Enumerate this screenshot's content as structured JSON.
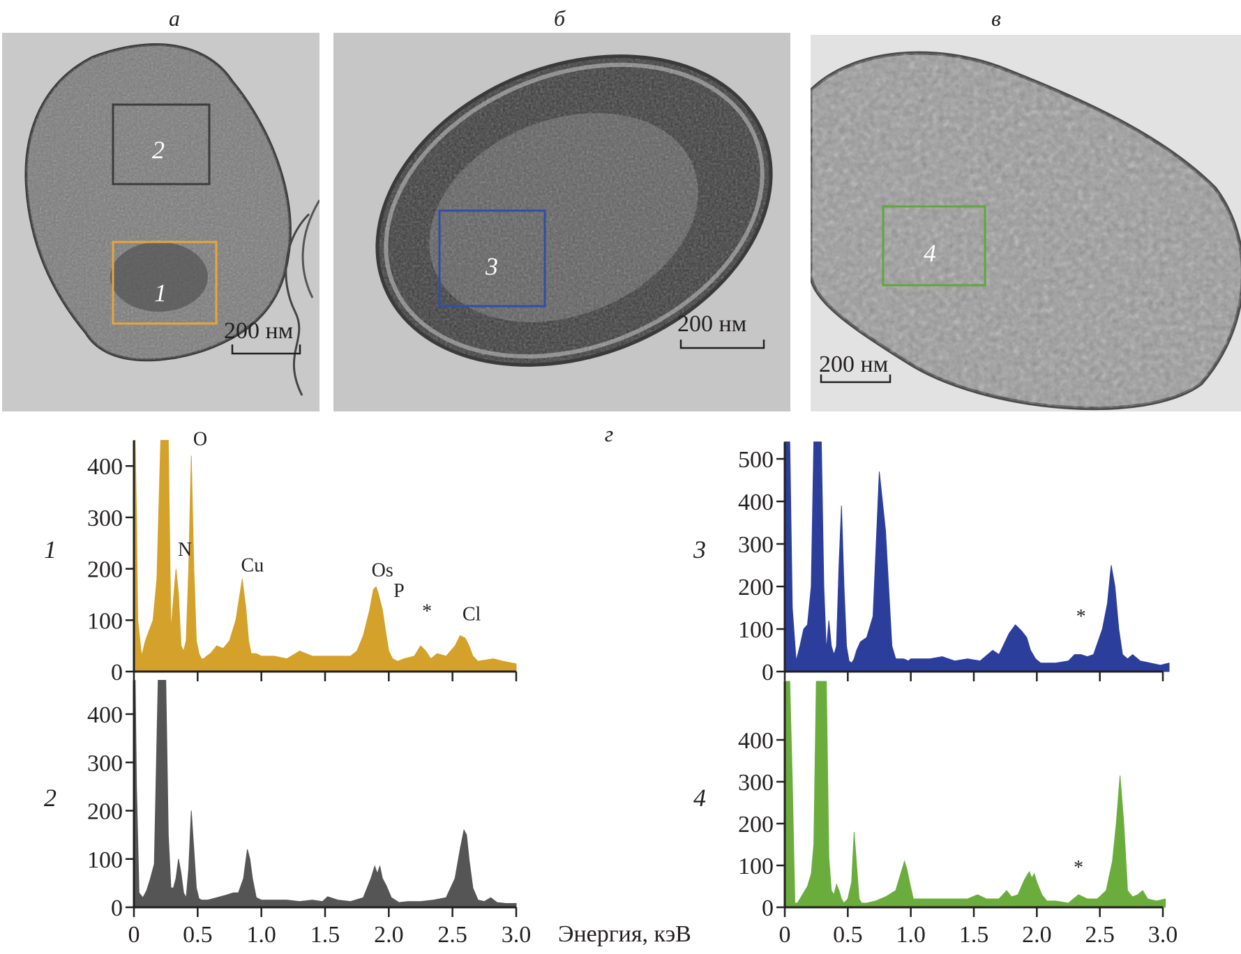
{
  "figure": {
    "panel_labels": {
      "a": "а",
      "b": "б",
      "c": "в",
      "d": "г"
    },
    "scale_bar_text": "200 нм",
    "photos": [
      {
        "id": "a",
        "rois": [
          {
            "num": "1",
            "color": "#e8a63a"
          },
          {
            "num": "2",
            "color": "#3c3c3c"
          }
        ]
      },
      {
        "id": "b",
        "rois": [
          {
            "num": "3",
            "color": "#2f4ea8"
          }
        ]
      },
      {
        "id": "c",
        "rois": [
          {
            "num": "4",
            "color": "#5ea83a"
          }
        ]
      }
    ]
  },
  "chart_data": [
    {
      "type": "area",
      "id": "spectrum-1",
      "label": "1",
      "color": "#d4a12a",
      "xlabel": "",
      "ylabel": "",
      "xlim": [
        0,
        3.0
      ],
      "ylim": [
        0,
        450
      ],
      "xticks": [
        0,
        0.5,
        1.0,
        1.5,
        2.0,
        2.5,
        3.0
      ],
      "xtick_labels": [],
      "yticks": [
        0,
        100,
        200,
        300,
        400
      ],
      "ytick_labels": [
        "0",
        "100",
        "200",
        "300",
        "400"
      ],
      "peak_labels": [
        {
          "text": "O",
          "x": 0.52,
          "y": 440
        },
        {
          "text": "N",
          "x": 0.4,
          "y": 225
        },
        {
          "text": "Cu",
          "x": 0.93,
          "y": 195
        },
        {
          "text": "Os",
          "x": 1.95,
          "y": 185
        },
        {
          "text": "P",
          "x": 2.08,
          "y": 145
        },
        {
          "text": "*",
          "x": 2.3,
          "y": 105
        },
        {
          "text": "Cl",
          "x": 2.65,
          "y": 100
        }
      ],
      "x": [
        0,
        0.01,
        0.02,
        0.03,
        0.06,
        0.09,
        0.12,
        0.15,
        0.18,
        0.21,
        0.23,
        0.25,
        0.27,
        0.29,
        0.31,
        0.33,
        0.35,
        0.37,
        0.39,
        0.41,
        0.43,
        0.45,
        0.47,
        0.49,
        0.51,
        0.53,
        0.55,
        0.57,
        0.6,
        0.65,
        0.7,
        0.75,
        0.8,
        0.85,
        0.88,
        0.9,
        0.92,
        0.94,
        0.96,
        1.0,
        1.1,
        1.2,
        1.3,
        1.4,
        1.5,
        1.6,
        1.7,
        1.75,
        1.8,
        1.85,
        1.88,
        1.9,
        1.92,
        1.95,
        1.98,
        2.0,
        2.03,
        2.07,
        2.12,
        2.2,
        2.25,
        2.29,
        2.33,
        2.38,
        2.45,
        2.52,
        2.56,
        2.6,
        2.63,
        2.66,
        2.7,
        2.75,
        2.82,
        2.9,
        3.0
      ],
      "y": [
        450,
        450,
        300,
        100,
        30,
        60,
        80,
        100,
        180,
        450,
        450,
        450,
        450,
        80,
        140,
        200,
        150,
        50,
        40,
        60,
        200,
        420,
        200,
        60,
        35,
        25,
        25,
        30,
        35,
        50,
        45,
        60,
        100,
        180,
        120,
        60,
        35,
        35,
        35,
        30,
        30,
        25,
        40,
        30,
        30,
        30,
        30,
        40,
        70,
        120,
        160,
        165,
        150,
        120,
        70,
        40,
        25,
        20,
        25,
        30,
        50,
        40,
        25,
        35,
        30,
        50,
        70,
        65,
        50,
        30,
        20,
        22,
        25,
        20,
        15
      ]
    },
    {
      "type": "area",
      "id": "spectrum-2",
      "label": "2",
      "color": "#555555",
      "xlabel": "Энергия, кэВ",
      "ylabel": "",
      "xlim": [
        0,
        3.0
      ],
      "ylim": [
        0,
        470
      ],
      "xticks": [
        0,
        0.5,
        1.0,
        1.5,
        2.0,
        2.5,
        3.0
      ],
      "xtick_labels": [
        "0",
        "0.5",
        "1.0",
        "1.5",
        "2.0",
        "2.5",
        "3.0"
      ],
      "yticks": [
        0,
        100,
        200,
        300,
        400
      ],
      "ytick_labels": [
        "0",
        "100",
        "200",
        "300",
        "400"
      ],
      "peak_labels": [],
      "x": [
        0,
        0.01,
        0.02,
        0.04,
        0.07,
        0.1,
        0.13,
        0.16,
        0.19,
        0.21,
        0.23,
        0.25,
        0.27,
        0.29,
        0.31,
        0.33,
        0.35,
        0.37,
        0.39,
        0.41,
        0.43,
        0.45,
        0.47,
        0.49,
        0.51,
        0.53,
        0.55,
        0.58,
        0.65,
        0.72,
        0.78,
        0.82,
        0.86,
        0.89,
        0.91,
        0.93,
        0.96,
        1.0,
        1.1,
        1.2,
        1.3,
        1.4,
        1.48,
        1.52,
        1.6,
        1.7,
        1.8,
        1.86,
        1.89,
        1.91,
        1.93,
        1.95,
        1.98,
        2.02,
        2.08,
        2.15,
        2.25,
        2.35,
        2.45,
        2.52,
        2.56,
        2.59,
        2.61,
        2.63,
        2.66,
        2.7,
        2.75,
        2.8,
        2.85,
        2.92,
        3.0
      ],
      "y": [
        470,
        470,
        250,
        30,
        20,
        35,
        60,
        90,
        470,
        470,
        470,
        470,
        150,
        40,
        40,
        60,
        100,
        70,
        30,
        20,
        80,
        200,
        120,
        40,
        18,
        15,
        15,
        15,
        20,
        25,
        30,
        30,
        60,
        120,
        100,
        60,
        20,
        15,
        15,
        15,
        12,
        15,
        12,
        22,
        15,
        12,
        20,
        60,
        85,
        70,
        85,
        60,
        45,
        20,
        10,
        12,
        12,
        15,
        20,
        60,
        120,
        160,
        150,
        100,
        40,
        15,
        12,
        20,
        10,
        8,
        8
      ]
    },
    {
      "type": "area",
      "id": "spectrum-3",
      "label": "3",
      "color": "#2c3e9c",
      "xlabel": "",
      "ylabel": "",
      "xlim": [
        0,
        3.0
      ],
      "ylim": [
        0,
        540
      ],
      "xticks": [
        0,
        0.5,
        1.0,
        1.5,
        2.0,
        2.5,
        3.0
      ],
      "xtick_labels": [],
      "yticks": [
        0,
        100,
        200,
        300,
        400,
        500
      ],
      "ytick_labels": [
        "0",
        "100",
        "200",
        "300",
        "400",
        "500"
      ],
      "peak_labels": [
        {
          "text": "*",
          "x": 2.35,
          "y": 115
        }
      ],
      "x": [
        0,
        0.02,
        0.04,
        0.06,
        0.09,
        0.12,
        0.15,
        0.18,
        0.21,
        0.23,
        0.25,
        0.27,
        0.29,
        0.31,
        0.33,
        0.35,
        0.37,
        0.39,
        0.41,
        0.43,
        0.45,
        0.47,
        0.49,
        0.51,
        0.53,
        0.55,
        0.57,
        0.6,
        0.65,
        0.7,
        0.75,
        0.8,
        0.85,
        0.88,
        0.9,
        0.92,
        0.94,
        0.96,
        0.98,
        1.0,
        1.05,
        1.15,
        1.25,
        1.35,
        1.45,
        1.55,
        1.65,
        1.7,
        1.78,
        1.83,
        1.88,
        1.92,
        1.95,
        1.99,
        2.03,
        2.08,
        2.15,
        2.25,
        2.3,
        2.35,
        2.4,
        2.45,
        2.52,
        2.56,
        2.59,
        2.62,
        2.65,
        2.68,
        2.72,
        2.76,
        2.82,
        2.9,
        2.98,
        3.05
      ],
      "y": [
        540,
        540,
        540,
        150,
        25,
        60,
        100,
        110,
        200,
        540,
        540,
        540,
        540,
        200,
        50,
        120,
        60,
        40,
        60,
        250,
        390,
        200,
        60,
        25,
        20,
        30,
        50,
        70,
        80,
        130,
        470,
        330,
        60,
        30,
        30,
        30,
        30,
        28,
        25,
        30,
        30,
        30,
        35,
        25,
        30,
        25,
        50,
        40,
        90,
        110,
        95,
        80,
        50,
        30,
        20,
        20,
        20,
        25,
        40,
        40,
        35,
        40,
        100,
        160,
        250,
        200,
        100,
        40,
        30,
        40,
        25,
        20,
        15,
        20
      ]
    },
    {
      "type": "area",
      "id": "spectrum-4",
      "label": "4",
      "color": "#6aad3d",
      "xlabel": "",
      "ylabel": "",
      "xlim": [
        0,
        3.0
      ],
      "ylim": [
        0,
        540
      ],
      "xticks": [
        0,
        0.5,
        1.0,
        1.5,
        2.0,
        2.5,
        3.0
      ],
      "xtick_labels": [
        "0",
        "0.5",
        "1.0",
        "1.5",
        "2.0",
        "2.5",
        "3.0"
      ],
      "yticks": [
        0,
        100,
        200,
        300,
        400
      ],
      "ytick_labels": [
        "0",
        "100",
        "200",
        "300",
        "400"
      ],
      "peak_labels": [
        {
          "text": "*",
          "x": 2.33,
          "y": 80
        }
      ],
      "x": [
        0,
        0.02,
        0.04,
        0.06,
        0.08,
        0.1,
        0.14,
        0.18,
        0.21,
        0.23,
        0.25,
        0.27,
        0.29,
        0.31,
        0.33,
        0.35,
        0.37,
        0.39,
        0.41,
        0.43,
        0.45,
        0.47,
        0.5,
        0.53,
        0.55,
        0.57,
        0.59,
        0.61,
        0.65,
        0.72,
        0.8,
        0.88,
        0.92,
        0.95,
        0.97,
        0.99,
        1.02,
        1.05,
        1.15,
        1.25,
        1.35,
        1.45,
        1.53,
        1.6,
        1.7,
        1.76,
        1.8,
        1.85,
        1.9,
        1.94,
        1.96,
        1.98,
        2.0,
        2.04,
        2.08,
        2.15,
        2.25,
        2.33,
        2.4,
        2.48,
        2.55,
        2.6,
        2.63,
        2.66,
        2.69,
        2.72,
        2.76,
        2.8,
        2.84,
        2.88,
        2.95,
        3.02
      ],
      "y": [
        540,
        540,
        540,
        300,
        10,
        10,
        30,
        50,
        80,
        150,
        540,
        540,
        540,
        540,
        540,
        120,
        40,
        30,
        55,
        40,
        20,
        10,
        20,
        60,
        180,
        100,
        20,
        10,
        10,
        15,
        25,
        40,
        80,
        110,
        90,
        60,
        20,
        20,
        20,
        20,
        20,
        20,
        30,
        20,
        20,
        40,
        25,
        30,
        65,
        85,
        70,
        80,
        60,
        30,
        15,
        15,
        10,
        30,
        20,
        20,
        40,
        110,
        200,
        315,
        200,
        40,
        25,
        30,
        40,
        20,
        15,
        20
      ]
    }
  ]
}
